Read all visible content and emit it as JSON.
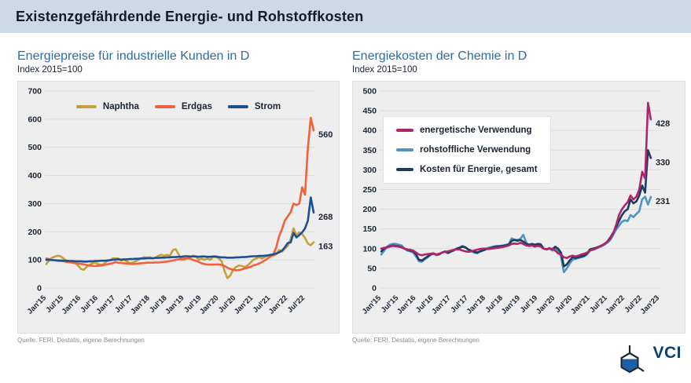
{
  "header": {
    "title": "Existenzgefährdende Energie- und Rohstoffkosten"
  },
  "logo": {
    "text": "VCI"
  },
  "chart_data": [
    {
      "type": "line",
      "title": "Energiepreise für industrielle Kunden in D",
      "subtitle": "Index 2015=100",
      "source": "Quelle: FERI, Destatis, eigene Berechnungen",
      "grid": "horizontal",
      "legend_position": "top-inside-row",
      "ylim": [
        0,
        700
      ],
      "yticks": [
        0,
        100,
        200,
        300,
        400,
        500,
        600,
        700
      ],
      "x_tick_labels": [
        "Jan'15",
        "Jul'15",
        "Jan'16",
        "Jul'16",
        "Jan'17",
        "Jul'17",
        "Jan'18",
        "Jul'18",
        "Jan'19",
        "Jul'19",
        "Jan'20",
        "Jul'20",
        "Jan'21",
        "Jul'21",
        "Jan'22",
        "Jul'22"
      ],
      "x_tick_step_months": 6,
      "x_domain_months": 93,
      "x_range_note": "monthly values Jan 2015 - Oct 2022",
      "draw_order": [
        0,
        1,
        2
      ],
      "series": [
        {
          "name": "Naphtha",
          "color": "#c2a13c",
          "end_label": "163",
          "values": [
            85,
            100,
            108,
            112,
            115,
            112,
            105,
            95,
            92,
            95,
            90,
            80,
            68,
            65,
            75,
            82,
            88,
            90,
            85,
            82,
            85,
            95,
            98,
            105,
            105,
            105,
            98,
            100,
            95,
            88,
            90,
            95,
            100,
            105,
            110,
            108,
            110,
            105,
            108,
            115,
            118,
            115,
            118,
            115,
            135,
            138,
            120,
            100,
            100,
            105,
            110,
            115,
            112,
            100,
            105,
            100,
            105,
            100,
            110,
            110,
            105,
            95,
            60,
            35,
            45,
            65,
            75,
            80,
            78,
            75,
            80,
            90,
            100,
            105,
            110,
            105,
            110,
            115,
            115,
            115,
            120,
            135,
            130,
            140,
            150,
            175,
            212,
            188,
            198,
            192,
            178,
            158,
            152,
            163
          ]
        },
        {
          "name": "Erdgas",
          "color": "#f2603c",
          "end_label": "560",
          "values": [
            105,
            103,
            100,
            98,
            97,
            96,
            95,
            93,
            92,
            90,
            88,
            87,
            86,
            84,
            82,
            80,
            79,
            78,
            79,
            80,
            82,
            84,
            86,
            88,
            92,
            90,
            89,
            88,
            87,
            86,
            85,
            86,
            87,
            88,
            89,
            90,
            90,
            90,
            91,
            91,
            92,
            93,
            94,
            96,
            98,
            100,
            102,
            103,
            105,
            106,
            104,
            100,
            97,
            93,
            88,
            85,
            84,
            83,
            83,
            84,
            84,
            82,
            78,
            72,
            68,
            65,
            63,
            64,
            66,
            70,
            72,
            75,
            80,
            83,
            87,
            92,
            98,
            105,
            112,
            120,
            145,
            185,
            210,
            240,
            255,
            270,
            300,
            295,
            300,
            358,
            332,
            500,
            605,
            560
          ]
        },
        {
          "name": "Strom",
          "color": "#1d5091",
          "end_label": "268",
          "values": [
            100,
            100,
            99,
            99,
            98,
            98,
            97,
            97,
            96,
            96,
            95,
            95,
            95,
            94,
            94,
            95,
            95,
            96,
            96,
            97,
            97,
            98,
            99,
            100,
            101,
            102,
            101,
            102,
            102,
            103,
            103,
            104,
            104,
            105,
            105,
            106,
            106,
            106,
            107,
            107,
            108,
            108,
            109,
            109,
            110,
            110,
            111,
            111,
            113,
            113,
            112,
            112,
            112,
            111,
            112,
            112,
            111,
            111,
            112,
            112,
            110,
            109,
            109,
            108,
            108,
            108,
            109,
            109,
            110,
            110,
            111,
            112,
            113,
            113,
            114,
            114,
            115,
            116,
            118,
            120,
            123,
            127,
            133,
            145,
            160,
            162,
            196,
            180,
            188,
            198,
            212,
            240,
            322,
            268
          ]
        }
      ]
    },
    {
      "type": "line",
      "title": "Energiekosten der Chemie in D",
      "subtitle": "Index 2015=100",
      "source": "Quelle: FERI, Destatis, eigene Berechnungen",
      "grid": "horizontal",
      "legend_position": "box-left-inside",
      "ylim": [
        0,
        500
      ],
      "yticks": [
        0,
        50,
        100,
        150,
        200,
        250,
        300,
        350,
        400,
        450,
        500
      ],
      "x_tick_labels": [
        "Jan'15",
        "Jul'15",
        "Jan'16",
        "Jul'16",
        "Jan'17",
        "Jul'17",
        "Jan'18",
        "Jul'18",
        "Jan'19",
        "Jul'19",
        "Jan'20",
        "Jul'20",
        "Jan'21",
        "Jul'21",
        "Jan'22",
        "Jul'22",
        "Jan'23"
      ],
      "x_tick_step_months": 6,
      "x_domain_months": 96,
      "x_range_note": "monthly values Jan 2015 - Oct 2022",
      "draw_order": [
        1,
        2,
        0
      ],
      "series": [
        {
          "name": "energetische Verwendung",
          "color": "#b02569",
          "end_label": "428",
          "values": [
            100,
            102,
            103,
            105,
            107,
            106,
            105,
            103,
            100,
            98,
            97,
            95,
            90,
            85,
            83,
            85,
            86,
            87,
            88,
            85,
            87,
            90,
            92,
            93,
            95,
            97,
            98,
            98,
            95,
            93,
            92,
            93,
            95,
            97,
            99,
            100,
            100,
            99,
            100,
            101,
            102,
            103,
            104,
            106,
            108,
            112,
            113,
            112,
            115,
            112,
            108,
            107,
            108,
            105,
            107,
            105,
            100,
            98,
            100,
            100,
            95,
            88,
            85,
            78,
            76,
            80,
            82,
            80,
            82,
            85,
            87,
            90,
            95,
            97,
            100,
            105,
            108,
            112,
            118,
            125,
            138,
            160,
            185,
            200,
            210,
            218,
            235,
            225,
            232,
            250,
            295,
            278,
            470,
            428
          ]
        },
        {
          "name": "rohstoffliche Verwendung",
          "color": "#4e94c4",
          "end_label": "231",
          "values": [
            85,
            95,
            105,
            110,
            112,
            112,
            110,
            108,
            100,
            95,
            93,
            90,
            80,
            68,
            67,
            73,
            78,
            84,
            87,
            83,
            85,
            90,
            92,
            88,
            92,
            95,
            100,
            103,
            107,
            104,
            98,
            94,
            90,
            88,
            92,
            95,
            100,
            102,
            104,
            106,
            107,
            107,
            108,
            110,
            112,
            126,
            123,
            122,
            125,
            135,
            115,
            108,
            110,
            108,
            112,
            112,
            100,
            98,
            102,
            95,
            100,
            95,
            80,
            40,
            50,
            62,
            72,
            74,
            76,
            78,
            80,
            85,
            95,
            98,
            100,
            103,
            106,
            110,
            115,
            122,
            135,
            148,
            158,
            168,
            172,
            170,
            185,
            180,
            188,
            195,
            225,
            232,
            212,
            231
          ]
        },
        {
          "name": "Kosten für Energie, gesamt",
          "color": "#1d3b5f",
          "end_label": "330",
          "values": [
            93,
            100,
            104,
            106,
            108,
            107,
            106,
            104,
            100,
            97,
            95,
            93,
            85,
            72,
            70,
            75,
            80,
            85,
            88,
            85,
            86,
            90,
            93,
            90,
            93,
            96,
            100,
            102,
            105,
            103,
            98,
            95,
            92,
            90,
            93,
            95,
            98,
            100,
            102,
            104,
            105,
            106,
            107,
            108,
            110,
            120,
            122,
            120,
            122,
            118,
            112,
            110,
            112,
            110,
            112,
            110,
            100,
            98,
            100,
            98,
            105,
            100,
            90,
            55,
            60,
            70,
            78,
            76,
            78,
            80,
            82,
            88,
            98,
            100,
            102,
            105,
            108,
            112,
            118,
            128,
            140,
            155,
            170,
            185,
            195,
            200,
            225,
            215,
            220,
            235,
            260,
            242,
            350,
            330
          ]
        }
      ]
    }
  ]
}
